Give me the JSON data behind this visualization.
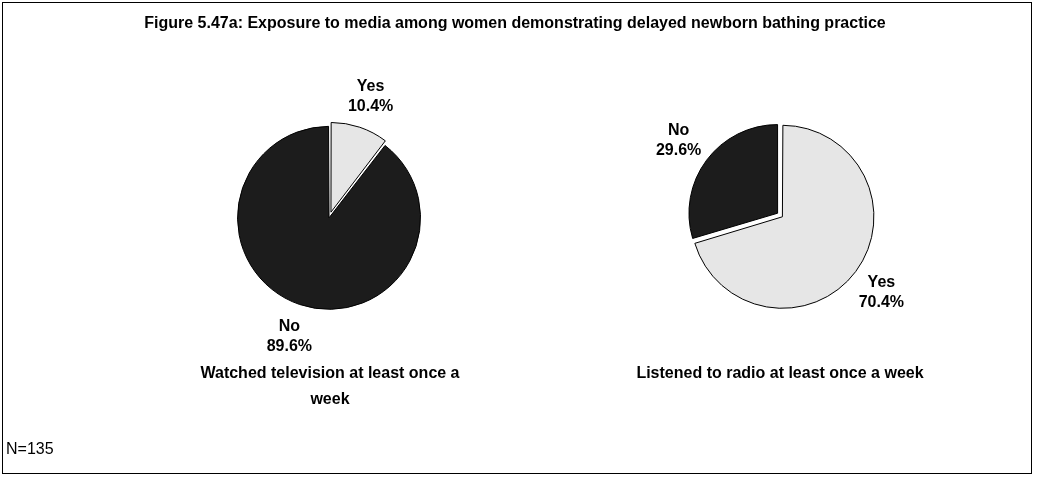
{
  "chart_data": [
    {
      "type": "pie",
      "title": "Figure 5.47a: Exposure to media among women demonstrating delayed newborn bathing practice",
      "xlabel": "Watched television at least once a week",
      "categories": [
        "Yes",
        "No"
      ],
      "values": [
        10.4,
        89.6
      ],
      "value_labels": [
        "10.4%",
        "89.6%"
      ],
      "colors": [
        "#e6e6e6",
        "#1c1c1c"
      ],
      "annotations": [
        "N=135"
      ]
    },
    {
      "type": "pie",
      "xlabel": "Listened to radio at least once a week",
      "categories": [
        "Yes",
        "No"
      ],
      "values": [
        70.4,
        29.6
      ],
      "value_labels": [
        "70.4%",
        "29.6%"
      ],
      "colors": [
        "#e6e6e6",
        "#1c1c1c"
      ]
    }
  ]
}
